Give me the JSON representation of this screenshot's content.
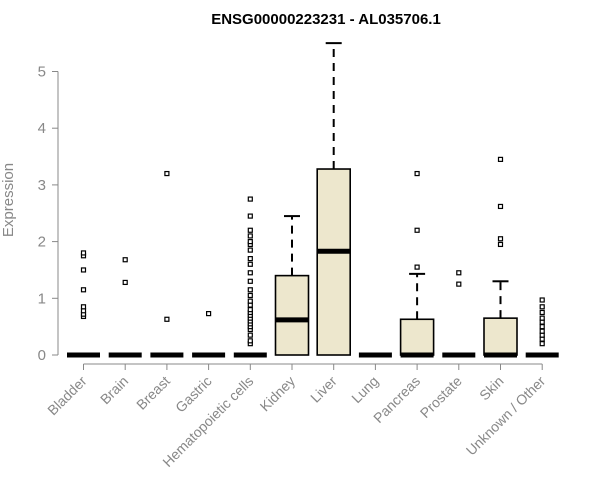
{
  "chart_data": {
    "type": "box",
    "title": "ENSG00000223231 - AL035706.1",
    "xlabel": "",
    "ylabel": "Expression",
    "ylim": [
      0,
      5.55
    ],
    "yticks": [
      0,
      1,
      2,
      3,
      4,
      5
    ],
    "grid": false,
    "box_color": "#EDE7CD",
    "categories": [
      "Bladder",
      "Brain",
      "Breast",
      "Gastric",
      "Hematopoietic cells",
      "Kidney",
      "Liver",
      "Lung",
      "Pancreas",
      "Prostate",
      "Skin",
      "Unknown / Other"
    ],
    "boxes": [
      {
        "q1": 0,
        "median": 0,
        "q3": 0,
        "whisker_low": 0,
        "whisker_high": 0,
        "outliers": [
          0.68,
          0.72,
          0.78,
          0.85,
          1.15,
          1.5,
          1.75,
          1.8
        ]
      },
      {
        "q1": 0,
        "median": 0,
        "q3": 0,
        "whisker_low": 0,
        "whisker_high": 0,
        "outliers": [
          1.28,
          1.68
        ]
      },
      {
        "q1": 0,
        "median": 0,
        "q3": 0,
        "whisker_low": 0,
        "whisker_high": 0,
        "outliers": [
          0.63,
          3.2
        ]
      },
      {
        "q1": 0,
        "median": 0,
        "q3": 0,
        "whisker_low": 0,
        "whisker_high": 0,
        "outliers": [
          0.73
        ]
      },
      {
        "q1": 0,
        "median": 0,
        "q3": 0,
        "whisker_low": 0,
        "whisker_high": 0,
        "outliers": [
          0.2,
          0.25,
          0.35,
          0.45,
          0.5,
          0.55,
          0.6,
          0.65,
          0.7,
          0.75,
          0.8,
          0.88,
          0.95,
          1.05,
          1.15,
          1.3,
          1.45,
          1.6,
          1.7,
          1.85,
          1.95,
          2.0,
          2.1,
          2.2,
          2.45,
          2.75
        ]
      },
      {
        "q1": 0,
        "median": 0.62,
        "q3": 1.4,
        "whisker_low": 0,
        "whisker_high": 2.45,
        "outliers": []
      },
      {
        "q1": 0,
        "median": 1.83,
        "q3": 3.28,
        "whisker_low": 0,
        "whisker_high": 5.5,
        "outliers": []
      },
      {
        "q1": 0,
        "median": 0,
        "q3": 0,
        "whisker_low": 0,
        "whisker_high": 0,
        "outliers": []
      },
      {
        "q1": 0,
        "median": 0,
        "q3": 0.63,
        "whisker_low": 0,
        "whisker_high": 1.43,
        "outliers": [
          1.55,
          2.2,
          3.2
        ]
      },
      {
        "q1": 0,
        "median": 0,
        "q3": 0,
        "whisker_low": 0,
        "whisker_high": 0,
        "outliers": [
          1.25,
          1.45
        ]
      },
      {
        "q1": 0,
        "median": 0,
        "q3": 0.65,
        "whisker_low": 0,
        "whisker_high": 1.3,
        "outliers": [
          1.95,
          2.05,
          2.62,
          3.45
        ]
      },
      {
        "q1": 0,
        "median": 0,
        "q3": 0,
        "whisker_low": 0,
        "whisker_high": 0,
        "outliers": [
          0.2,
          0.28,
          0.35,
          0.42,
          0.5,
          0.58,
          0.65,
          0.75,
          0.85,
          0.97
        ]
      }
    ]
  }
}
